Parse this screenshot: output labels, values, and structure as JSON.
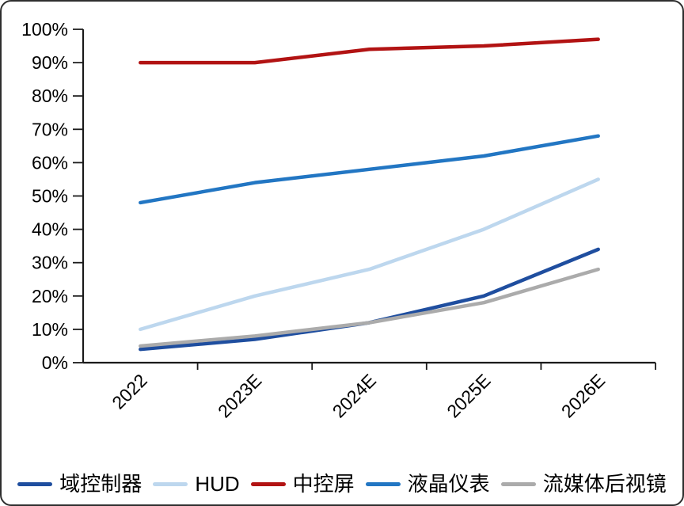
{
  "chart_data": {
    "type": "line",
    "categories": [
      "2022",
      "2023E",
      "2024E",
      "2025E",
      "2026E"
    ],
    "series": [
      {
        "name": "域控制器",
        "color": "#1f4e9f",
        "values": [
          4,
          7,
          12,
          20,
          34
        ]
      },
      {
        "name": "HUD",
        "color": "#bdd7ee",
        "values": [
          10,
          20,
          28,
          40,
          55
        ]
      },
      {
        "name": "中控屏",
        "color": "#b21313",
        "values": [
          90,
          90,
          94,
          95,
          97
        ]
      },
      {
        "name": "液晶仪表",
        "color": "#2276c3",
        "values": [
          48,
          54,
          58,
          62,
          68
        ]
      },
      {
        "name": "流媒体后视镜",
        "color": "#ababab",
        "values": [
          5,
          8,
          12,
          18,
          28
        ]
      }
    ],
    "title": "",
    "ylim": [
      0,
      100
    ],
    "ytick_step": 10,
    "ytick_labels": [
      "0%",
      "10%",
      "20%",
      "30%",
      "40%",
      "50%",
      "60%",
      "70%",
      "80%",
      "90%",
      "100%"
    ],
    "grid": false,
    "legend_position": "bottom",
    "x_tick_rotation": -45
  },
  "style": {
    "axis_color": "#1a1a1a",
    "text_color": "#000000",
    "background": "#ffffff",
    "border_color": "#2e2e2e"
  }
}
